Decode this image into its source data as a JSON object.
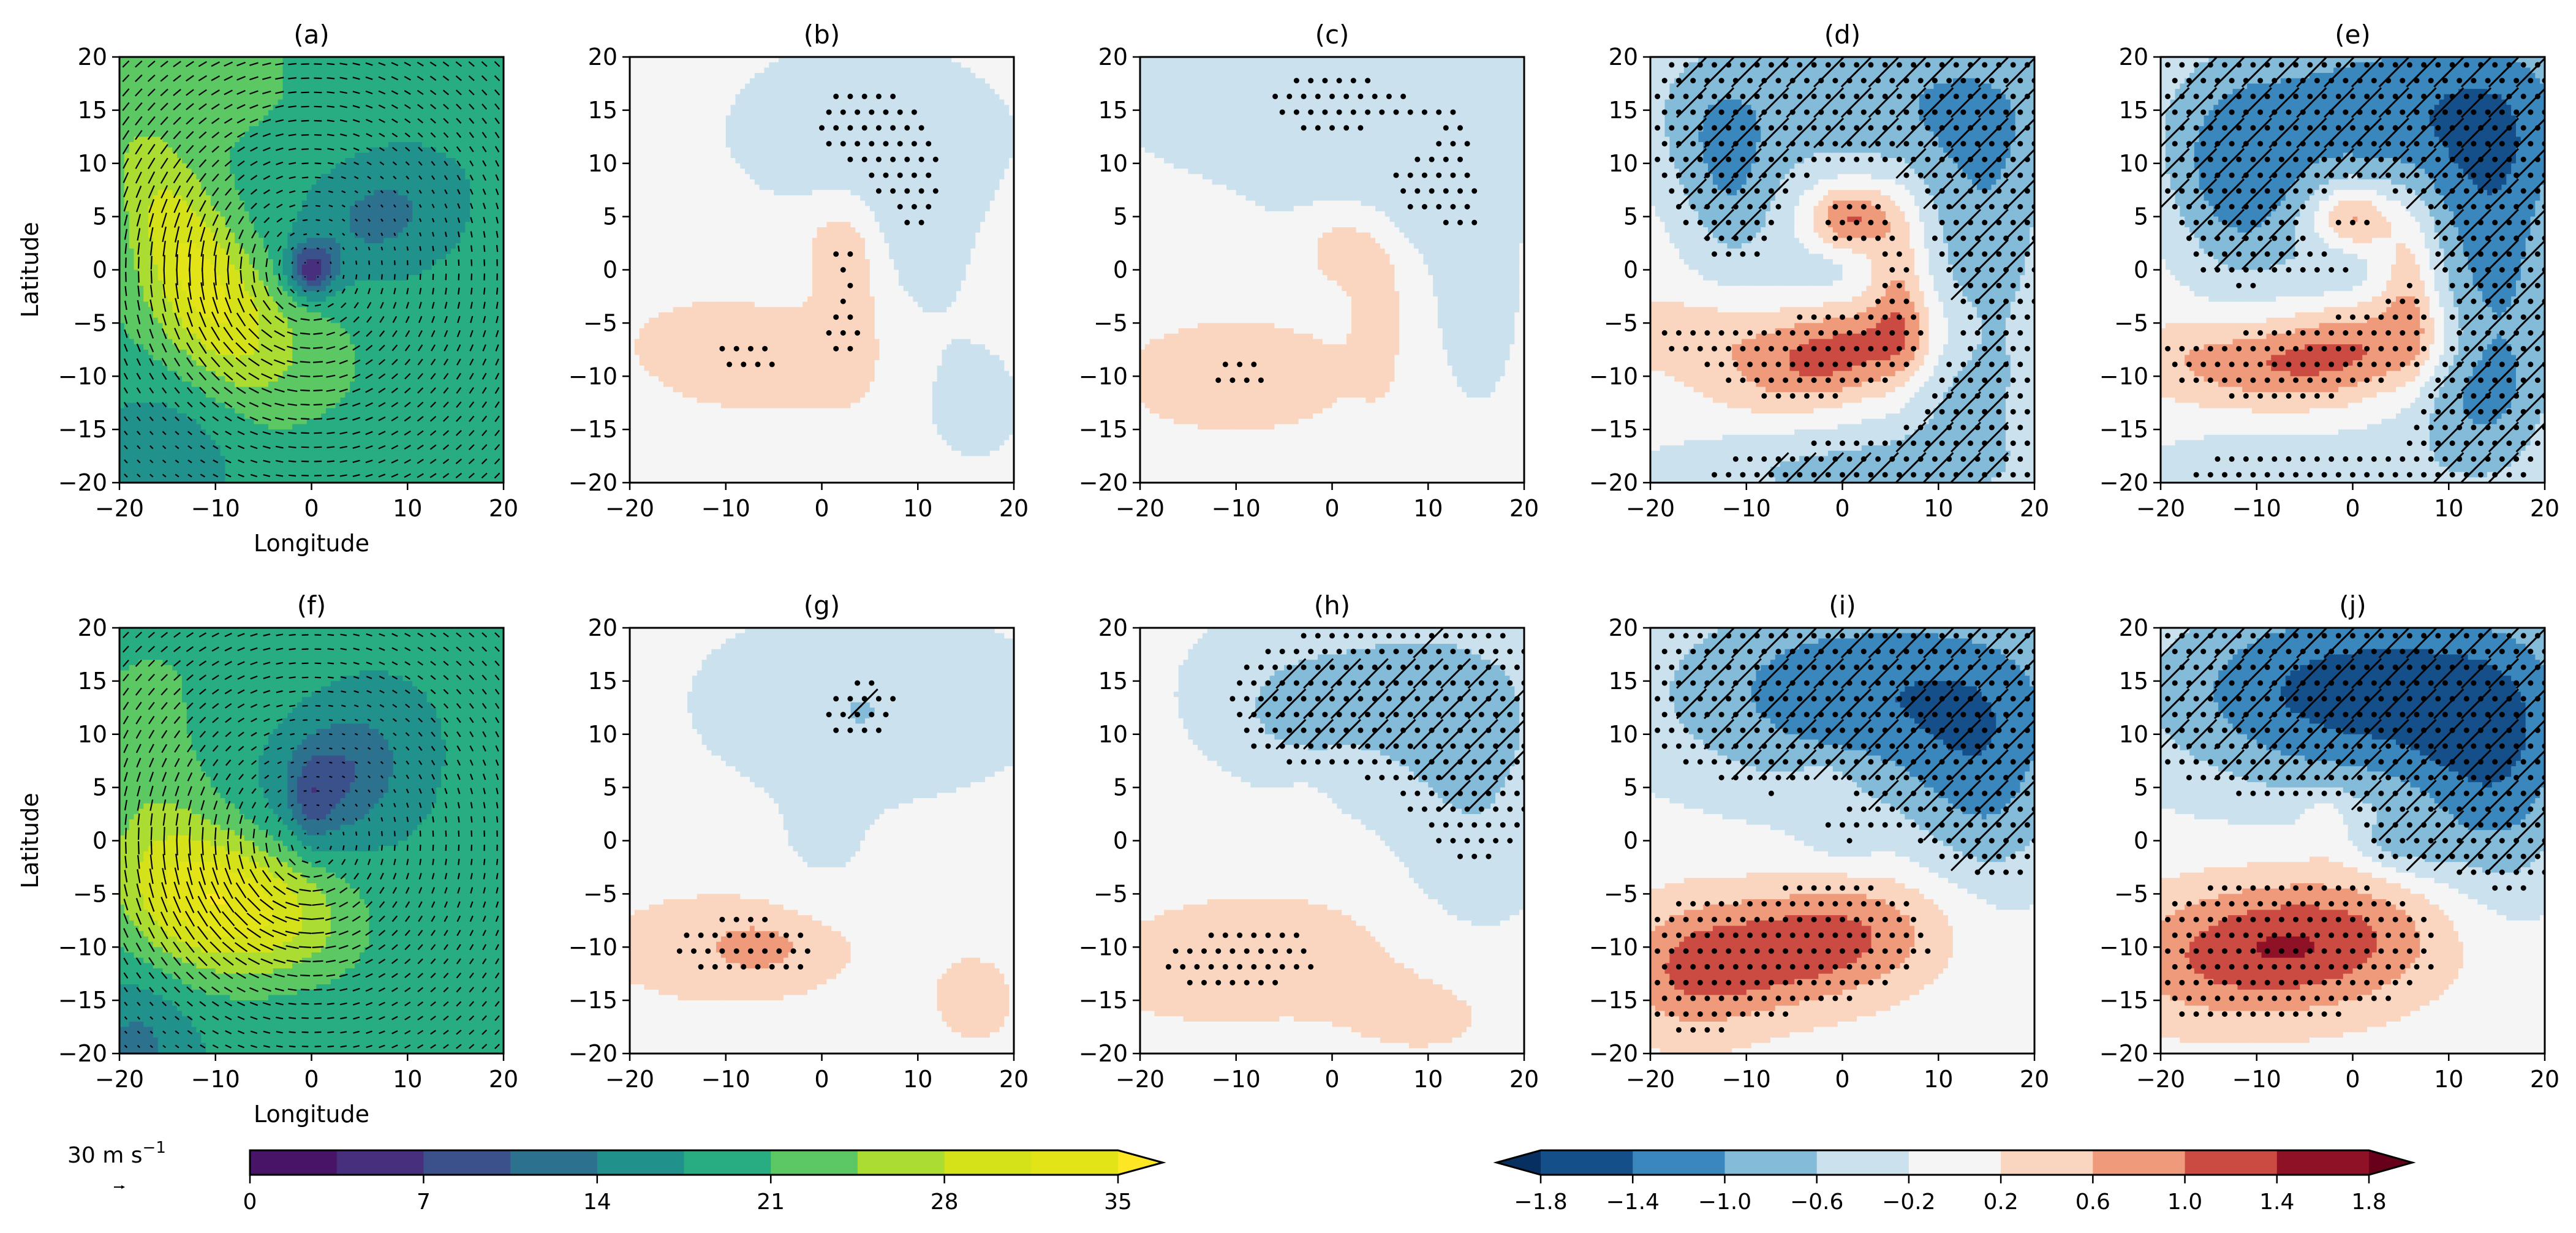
{
  "figure": {
    "quiver_key": {
      "label": "30 m s",
      "superscript": "−1",
      "value": 30
    }
  },
  "chart_data": {
    "type": "heatmap",
    "description": "10-panel filled-contour composite maps in storm-relative coordinates; panels a,f show wind speed (viridis) with wind vectors; panels b-e,g-j show anomalies (RdBu_r) with stippling and hatching for significance",
    "xlabel": "Longitude",
    "ylabel": "Latitude",
    "xlim": [
      -20,
      20
    ],
    "ylim": [
      -20,
      20
    ],
    "xticks": [
      "−20",
      "−10",
      "0",
      "10",
      "20"
    ],
    "yticks": [
      "20",
      "15",
      "10",
      "5",
      "0",
      "−5",
      "−10",
      "−15",
      "−20"
    ],
    "panels": [
      {
        "id": "a",
        "title": "(a)",
        "row": 0,
        "col": 0,
        "kind": "wind",
        "show_xlabel": true,
        "show_ylabel": true
      },
      {
        "id": "b",
        "title": "(b)",
        "row": 0,
        "col": 1,
        "kind": "anom"
      },
      {
        "id": "c",
        "title": "(c)",
        "row": 0,
        "col": 2,
        "kind": "anom"
      },
      {
        "id": "d",
        "title": "(d)",
        "row": 0,
        "col": 3,
        "kind": "anom"
      },
      {
        "id": "e",
        "title": "(e)",
        "row": 0,
        "col": 4,
        "kind": "anom"
      },
      {
        "id": "f",
        "title": "(f)",
        "row": 1,
        "col": 0,
        "kind": "wind",
        "show_xlabel": true,
        "show_ylabel": true
      },
      {
        "id": "g",
        "title": "(g)",
        "row": 1,
        "col": 1,
        "kind": "anom"
      },
      {
        "id": "h",
        "title": "(h)",
        "row": 1,
        "col": 2,
        "kind": "anom"
      },
      {
        "id": "i",
        "title": "(i)",
        "row": 1,
        "col": 3,
        "kind": "anom"
      },
      {
        "id": "j",
        "title": "(j)",
        "row": 1,
        "col": 4,
        "kind": "anom"
      }
    ],
    "colorbars": [
      {
        "name": "wind-speed",
        "levels": [
          0,
          3.5,
          7,
          10.5,
          14,
          17.5,
          21,
          24.5,
          28,
          31.5,
          35
        ],
        "tick_labels": [
          "0",
          "7",
          "14",
          "21",
          "28",
          "35"
        ],
        "tick_values": [
          0,
          7,
          14,
          21,
          28,
          35
        ],
        "colors": [
          "#481467",
          "#472f7d",
          "#3b518b",
          "#2c718e",
          "#21918c",
          "#27ad81",
          "#5cc863",
          "#aadc32",
          "#d5e21a",
          "#e3e418"
        ],
        "extend": "max",
        "over_color": "#fde725"
      },
      {
        "name": "anomaly",
        "levels": [
          -1.8,
          -1.4,
          -1.0,
          -0.6,
          -0.2,
          0.2,
          0.6,
          1.0,
          1.4,
          1.8
        ],
        "tick_labels": [
          "−1.8",
          "−1.4",
          "−1.0",
          "−0.6",
          "−0.2",
          "0.2",
          "0.6",
          "1.0",
          "1.4",
          "1.8"
        ],
        "tick_values": [
          -1.8,
          -1.4,
          -1.0,
          -0.6,
          -0.2,
          0.2,
          0.6,
          1.0,
          1.4,
          1.8
        ],
        "colors": [
          "#154f8a",
          "#3a87bd",
          "#83bbd9",
          "#cbe2ee",
          "#f5f5f5",
          "#fad6c1",
          "#ef9a7b",
          "#cb4a42",
          "#8e1126"
        ],
        "extend": "both",
        "under_color": "#072f5f",
        "over_color": "#670019"
      }
    ]
  }
}
